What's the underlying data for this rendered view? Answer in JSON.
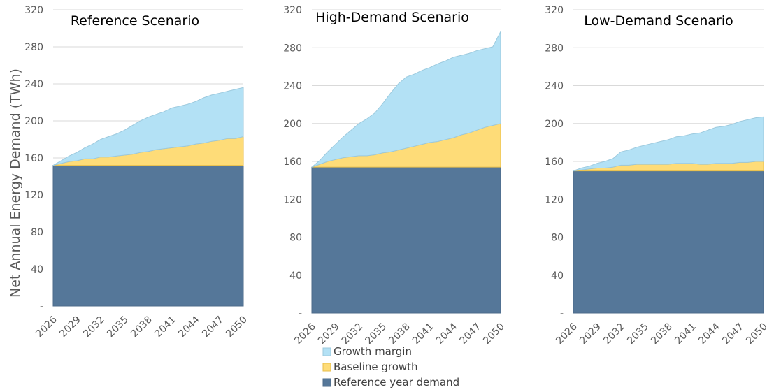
{
  "legend": {
    "items": [
      {
        "label": "Growth margin",
        "color": "#b3e1f5"
      },
      {
        "label": "Baseline growth",
        "color": "#fedc78"
      },
      {
        "label": "Reference year demand",
        "color": "#557799"
      }
    ]
  },
  "chart_data": [
    {
      "type": "area",
      "stacked": true,
      "title": "Reference Scenario",
      "ylabel": "Net Annual Energy Demand (TWh)",
      "ylim": [
        0,
        320
      ],
      "yticks": [
        0,
        40,
        80,
        120,
        160,
        200,
        240,
        280,
        320
      ],
      "ytick_labels": [
        "-",
        "40",
        "80",
        "120",
        "160",
        "200",
        "240",
        "280",
        "320"
      ],
      "x": [
        2026,
        2027,
        2028,
        2029,
        2030,
        2031,
        2032,
        2033,
        2034,
        2035,
        2036,
        2037,
        2038,
        2039,
        2040,
        2041,
        2042,
        2043,
        2044,
        2045,
        2046,
        2047,
        2048,
        2049,
        2050
      ],
      "xtick_labels": [
        "2026",
        "2029",
        "2032",
        "2035",
        "2038",
        "2041",
        "2044",
        "2047",
        "2050"
      ],
      "series": [
        {
          "name": "Reference year demand",
          "values": [
            152,
            152,
            152,
            152,
            152,
            152,
            152,
            152,
            152,
            152,
            152,
            152,
            152,
            152,
            152,
            152,
            152,
            152,
            152,
            152,
            152,
            152,
            152,
            152,
            152
          ]
        },
        {
          "name": "Baseline growth",
          "values": [
            0,
            2,
            4,
            5,
            7,
            7,
            9,
            9,
            10,
            11,
            12,
            14,
            15,
            17,
            18,
            19,
            20,
            21,
            23,
            24,
            26,
            27,
            29,
            29,
            31
          ]
        },
        {
          "name": "Growth margin",
          "values": [
            0,
            3,
            6,
            9,
            12,
            16,
            19,
            22,
            24,
            27,
            31,
            34,
            37,
            38,
            40,
            43,
            44,
            45,
            46,
            49,
            50,
            51,
            51,
            53,
            53
          ]
        }
      ]
    },
    {
      "type": "area",
      "stacked": true,
      "title": "High-Demand Scenario",
      "ylim": [
        0,
        320
      ],
      "yticks": [
        0,
        40,
        80,
        120,
        160,
        200,
        240,
        280,
        320
      ],
      "ytick_labels": [
        "-",
        "40",
        "80",
        "120",
        "160",
        "200",
        "240",
        "280",
        "320"
      ],
      "x": [
        2026,
        2027,
        2028,
        2029,
        2030,
        2031,
        2032,
        2033,
        2034,
        2035,
        2036,
        2037,
        2038,
        2039,
        2040,
        2041,
        2042,
        2043,
        2044,
        2045,
        2046,
        2047,
        2048,
        2049,
        2050
      ],
      "xtick_labels": [
        "2026",
        "2029",
        "2032",
        "2035",
        "2038",
        "2041",
        "2044",
        "2047",
        "2050"
      ],
      "series": [
        {
          "name": "Reference year demand",
          "values": [
            154,
            154,
            154,
            154,
            154,
            154,
            154,
            154,
            154,
            154,
            154,
            154,
            154,
            154,
            154,
            154,
            154,
            154,
            154,
            154,
            154,
            154,
            154,
            154,
            154
          ]
        },
        {
          "name": "Baseline growth",
          "values": [
            0,
            3,
            6,
            8,
            10,
            11,
            12,
            12,
            13,
            15,
            16,
            18,
            20,
            22,
            24,
            26,
            27,
            29,
            31,
            34,
            36,
            39,
            42,
            44,
            46
          ]
        },
        {
          "name": "Growth margin",
          "values": [
            0,
            4,
            10,
            16,
            22,
            28,
            34,
            39,
            44,
            52,
            62,
            70,
            75,
            76,
            78,
            79,
            82,
            83,
            85,
            84,
            84,
            84,
            83,
            83,
            97
          ]
        }
      ]
    },
    {
      "type": "area",
      "stacked": true,
      "title": "Low-Demand Scenario",
      "ylim": [
        0,
        320
      ],
      "yticks": [
        0,
        40,
        80,
        120,
        160,
        200,
        240,
        280,
        320
      ],
      "ytick_labels": [
        "-",
        "40",
        "80",
        "120",
        "160",
        "200",
        "240",
        "280",
        "320"
      ],
      "x": [
        2026,
        2027,
        2028,
        2029,
        2030,
        2031,
        2032,
        2033,
        2034,
        2035,
        2036,
        2037,
        2038,
        2039,
        2040,
        2041,
        2042,
        2043,
        2044,
        2045,
        2046,
        2047,
        2048,
        2049,
        2050
      ],
      "xtick_labels": [
        "2026",
        "2029",
        "2032",
        "2035",
        "2038",
        "2041",
        "2044",
        "2047",
        "2050"
      ],
      "series": [
        {
          "name": "Reference year demand",
          "values": [
            150,
            150,
            150,
            150,
            150,
            150,
            150,
            150,
            150,
            150,
            150,
            150,
            150,
            150,
            150,
            150,
            150,
            150,
            150,
            150,
            150,
            150,
            150,
            150,
            150
          ]
        },
        {
          "name": "Baseline growth",
          "values": [
            0,
            1,
            2,
            3,
            3,
            4,
            6,
            6,
            7,
            7,
            7,
            7,
            7,
            8,
            8,
            8,
            7,
            7,
            8,
            8,
            8,
            9,
            9,
            10,
            10
          ]
        },
        {
          "name": "Growth margin",
          "values": [
            0,
            2,
            3,
            5,
            7,
            9,
            14,
            16,
            18,
            20,
            22,
            24,
            26,
            28,
            29,
            31,
            33,
            36,
            38,
            39,
            41,
            43,
            45,
            46,
            47
          ]
        }
      ]
    }
  ]
}
